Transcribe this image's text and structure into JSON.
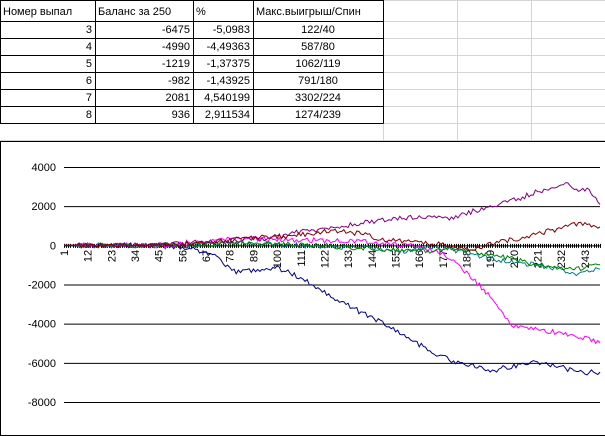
{
  "table": {
    "headers": [
      "Номер выпал",
      "Баланс за 250",
      "%",
      "Макс.выигрыш/Спин"
    ],
    "rows": [
      [
        "3",
        "-6475",
        "-5,0983",
        "122/40"
      ],
      [
        "4",
        "-4990",
        "-4,49363",
        "587/80"
      ],
      [
        "5",
        "-1219",
        "-1,37375",
        "1062/119"
      ],
      [
        "6",
        "-982",
        "-1,43925",
        "791/180"
      ],
      [
        "7",
        "2081",
        "4,540199",
        "3302/224"
      ],
      [
        "8",
        "936",
        "2,911534",
        "1274/239"
      ]
    ]
  },
  "chart_data": {
    "type": "line",
    "x_tick_labels": [
      "1",
      "12",
      "23",
      "34",
      "45",
      "56",
      "67",
      "78",
      "89",
      "100",
      "111",
      "122",
      "133",
      "144",
      "155",
      "166",
      "177",
      "188",
      "199",
      "210",
      "221",
      "232",
      "243"
    ],
    "x_range": [
      1,
      250
    ],
    "ylim": [
      -8000,
      4000
    ],
    "y_ticks": [
      4000,
      2000,
      0,
      -2000,
      -4000,
      -6000,
      -8000
    ],
    "y_tick_labels": [
      "4000",
      "2000",
      "0",
      "-2000",
      "-4000",
      "-6000",
      "-8000"
    ],
    "grid": "horizontal",
    "legend": "none",
    "series": [
      {
        "color": "#000080",
        "final": -6475,
        "keypoints": [
          [
            1,
            0
          ],
          [
            40,
            0
          ],
          [
            60,
            -120
          ],
          [
            70,
            -500
          ],
          [
            80,
            -1350
          ],
          [
            90,
            -1250
          ],
          [
            100,
            -1150
          ],
          [
            110,
            -1600
          ],
          [
            120,
            -2250
          ],
          [
            135,
            -3200
          ],
          [
            150,
            -4000
          ],
          [
            165,
            -5000
          ],
          [
            175,
            -5600
          ],
          [
            185,
            -6050
          ],
          [
            190,
            -6150
          ],
          [
            200,
            -6400
          ],
          [
            210,
            -6150
          ],
          [
            220,
            -5950
          ],
          [
            230,
            -6150
          ],
          [
            240,
            -6500
          ],
          [
            250,
            -6475
          ]
        ]
      },
      {
        "color": "#ff00ff",
        "final": -4990,
        "keypoints": [
          [
            1,
            0
          ],
          [
            50,
            0
          ],
          [
            80,
            350
          ],
          [
            100,
            300
          ],
          [
            120,
            250
          ],
          [
            140,
            200
          ],
          [
            160,
            0
          ],
          [
            170,
            -200
          ],
          [
            180,
            -600
          ],
          [
            190,
            -1600
          ],
          [
            200,
            -2700
          ],
          [
            205,
            -3600
          ],
          [
            210,
            -4100
          ],
          [
            220,
            -4300
          ],
          [
            230,
            -4450
          ],
          [
            240,
            -4650
          ],
          [
            250,
            -4990
          ]
        ]
      },
      {
        "color": "#008080",
        "final": -1219,
        "keypoints": [
          [
            1,
            0
          ],
          [
            60,
            0
          ],
          [
            80,
            150
          ],
          [
            100,
            50
          ],
          [
            120,
            -50
          ],
          [
            140,
            -150
          ],
          [
            160,
            -300
          ],
          [
            170,
            -100
          ],
          [
            180,
            -200
          ],
          [
            190,
            -400
          ],
          [
            200,
            -700
          ],
          [
            210,
            -900
          ],
          [
            220,
            -1000
          ],
          [
            230,
            -1200
          ],
          [
            240,
            -1450
          ],
          [
            250,
            -1219
          ]
        ]
      },
      {
        "color": "#008000",
        "final": -982,
        "keypoints": [
          [
            1,
            0
          ],
          [
            60,
            0
          ],
          [
            80,
            100
          ],
          [
            100,
            50
          ],
          [
            120,
            0
          ],
          [
            140,
            -150
          ],
          [
            160,
            -250
          ],
          [
            170,
            -300
          ],
          [
            180,
            -150
          ],
          [
            190,
            -300
          ],
          [
            200,
            -500
          ],
          [
            210,
            -700
          ],
          [
            220,
            -1000
          ],
          [
            230,
            -1100
          ],
          [
            240,
            -1200
          ],
          [
            250,
            -982
          ]
        ]
      },
      {
        "color": "#800080",
        "final": 2081,
        "keypoints": [
          [
            1,
            0
          ],
          [
            45,
            0
          ],
          [
            60,
            150
          ],
          [
            80,
            250
          ],
          [
            100,
            400
          ],
          [
            110,
            700
          ],
          [
            120,
            800
          ],
          [
            130,
            950
          ],
          [
            140,
            1150
          ],
          [
            150,
            1300
          ],
          [
            160,
            1400
          ],
          [
            170,
            1500
          ],
          [
            180,
            1300
          ],
          [
            190,
            1700
          ],
          [
            200,
            2000
          ],
          [
            210,
            2300
          ],
          [
            220,
            2700
          ],
          [
            230,
            3000
          ],
          [
            235,
            3200
          ],
          [
            240,
            2800
          ],
          [
            245,
            2900
          ],
          [
            250,
            2081
          ]
        ]
      },
      {
        "color": "#800000",
        "final": 936,
        "keypoints": [
          [
            1,
            0
          ],
          [
            50,
            0
          ],
          [
            70,
            150
          ],
          [
            90,
            400
          ],
          [
            110,
            500
          ],
          [
            120,
            700
          ],
          [
            130,
            750
          ],
          [
            140,
            550
          ],
          [
            150,
            300
          ],
          [
            160,
            200
          ],
          [
            170,
            100
          ],
          [
            180,
            0
          ],
          [
            190,
            -200
          ],
          [
            200,
            100
          ],
          [
            210,
            300
          ],
          [
            220,
            600
          ],
          [
            230,
            800
          ],
          [
            240,
            1100
          ],
          [
            250,
            936
          ]
        ]
      }
    ]
  }
}
